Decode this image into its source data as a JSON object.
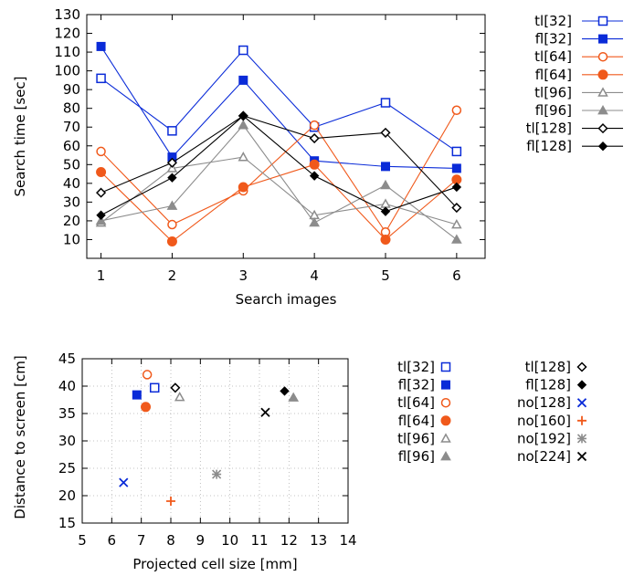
{
  "chart_data": [
    {
      "type": "line",
      "xlabel": "Search images",
      "ylabel": "Search time [sec]",
      "xlim": [
        0.8,
        6.4
      ],
      "ylim": [
        0,
        130
      ],
      "xticks": [
        "1",
        "2",
        "3",
        "4",
        "5",
        "6"
      ],
      "yticks": [
        "10",
        "20",
        "30",
        "40",
        "50",
        "60",
        "70",
        "80",
        "90",
        "100",
        "110",
        "120",
        "130"
      ],
      "grid": false,
      "legend": "right",
      "x": [
        1,
        2,
        3,
        4,
        5,
        6
      ],
      "series": [
        {
          "name": "tl[32]",
          "color": "#0a2bd8",
          "marker": "square-open",
          "values": [
            96,
            68,
            111,
            70,
            83,
            57
          ]
        },
        {
          "name": "fl[32]",
          "color": "#0a2bd8",
          "marker": "square-filled",
          "values": [
            113,
            54,
            95,
            52,
            49,
            48
          ]
        },
        {
          "name": "tl[64]",
          "color": "#f0591b",
          "marker": "circle-open",
          "values": [
            57,
            18,
            36,
            71,
            14,
            79
          ]
        },
        {
          "name": "fl[64]",
          "color": "#f0591b",
          "marker": "circle-filled",
          "values": [
            46,
            9,
            38,
            50,
            10,
            42
          ]
        },
        {
          "name": "tl[96]",
          "color": "#8c8c8c",
          "marker": "triangle-open",
          "values": [
            19,
            48,
            54,
            23,
            29,
            18
          ]
        },
        {
          "name": "fl[96]",
          "color": "#8c8c8c",
          "marker": "triangle-filled",
          "values": [
            20,
            28,
            71,
            19,
            39,
            10
          ]
        },
        {
          "name": "tl[128]",
          "color": "#000000",
          "marker": "diamond-open",
          "values": [
            35,
            51,
            76,
            64,
            67,
            27
          ]
        },
        {
          "name": "fl[128]",
          "color": "#000000",
          "marker": "diamond-filled",
          "values": [
            23,
            43,
            76,
            44,
            25,
            38
          ]
        }
      ]
    },
    {
      "type": "scatter",
      "xlabel": "Projected cell size [mm]",
      "ylabel": "Distance to screen [cm]",
      "xlim": [
        5,
        14
      ],
      "ylim": [
        15,
        45
      ],
      "xticks": [
        "5",
        "6",
        "7",
        "8",
        "9",
        "10",
        "11",
        "12",
        "13",
        "14"
      ],
      "yticks": [
        "15",
        "20",
        "25",
        "30",
        "35",
        "40",
        "45"
      ],
      "grid": true,
      "legend": "right",
      "series": [
        {
          "name": "tl[32]",
          "color": "#0a2bd8",
          "marker": "square-open",
          "points": [
            [
              7.45,
              39.7
            ]
          ]
        },
        {
          "name": "fl[32]",
          "color": "#0a2bd8",
          "marker": "square-filled",
          "points": [
            [
              6.85,
              38.4
            ]
          ]
        },
        {
          "name": "tl[64]",
          "color": "#f0591b",
          "marker": "circle-open",
          "points": [
            [
              7.2,
              42.1
            ]
          ]
        },
        {
          "name": "fl[64]",
          "color": "#f0591b",
          "marker": "circle-filled",
          "points": [
            [
              7.15,
              36.2
            ]
          ]
        },
        {
          "name": "tl[96]",
          "color": "#8c8c8c",
          "marker": "triangle-open",
          "points": [
            [
              8.3,
              38.0
            ]
          ]
        },
        {
          "name": "fl[96]",
          "color": "#8c8c8c",
          "marker": "triangle-filled",
          "points": [
            [
              12.15,
              37.9
            ]
          ]
        },
        {
          "name": "tl[128]",
          "color": "#000000",
          "marker": "diamond-open",
          "points": [
            [
              8.15,
              39.7
            ]
          ]
        },
        {
          "name": "fl[128]",
          "color": "#000000",
          "marker": "diamond-filled",
          "points": [
            [
              11.85,
              39.1
            ]
          ]
        },
        {
          "name": "no[128]",
          "color": "#0a2bd8",
          "marker": "cross",
          "points": [
            [
              6.4,
              22.4
            ]
          ]
        },
        {
          "name": "no[160]",
          "color": "#f0591b",
          "marker": "plus",
          "points": [
            [
              8.0,
              19.0
            ]
          ]
        },
        {
          "name": "no[192]",
          "color": "#8c8c8c",
          "marker": "star",
          "points": [
            [
              9.55,
              23.9
            ]
          ]
        },
        {
          "name": "no[224]",
          "color": "#000000",
          "marker": "cross",
          "points": [
            [
              11.2,
              35.2
            ]
          ]
        }
      ]
    }
  ]
}
